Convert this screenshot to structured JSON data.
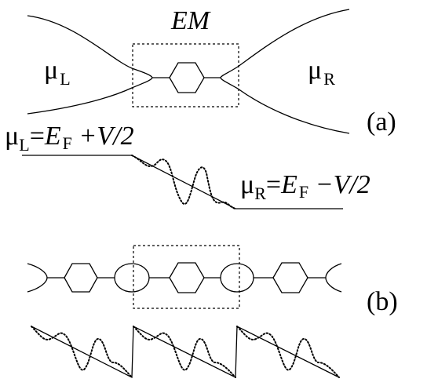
{
  "panel_a": {
    "region_label": "EM",
    "left_potential": {
      "symbol": "μ",
      "subscript": "L"
    },
    "right_potential": {
      "symbol": "μ",
      "subscript": "R"
    },
    "left_level": {
      "mu": "μ",
      "sub": "L",
      "eq": "=",
      "E": "E",
      "F": "F",
      "rest": " +V/2"
    },
    "right_level": {
      "mu": "μ",
      "sub": "R",
      "eq": "=",
      "E": "E",
      "F": "F",
      "rest": " −V/2"
    },
    "panel_label": "(a)"
  },
  "panel_b": {
    "panel_label": "(b)"
  }
}
